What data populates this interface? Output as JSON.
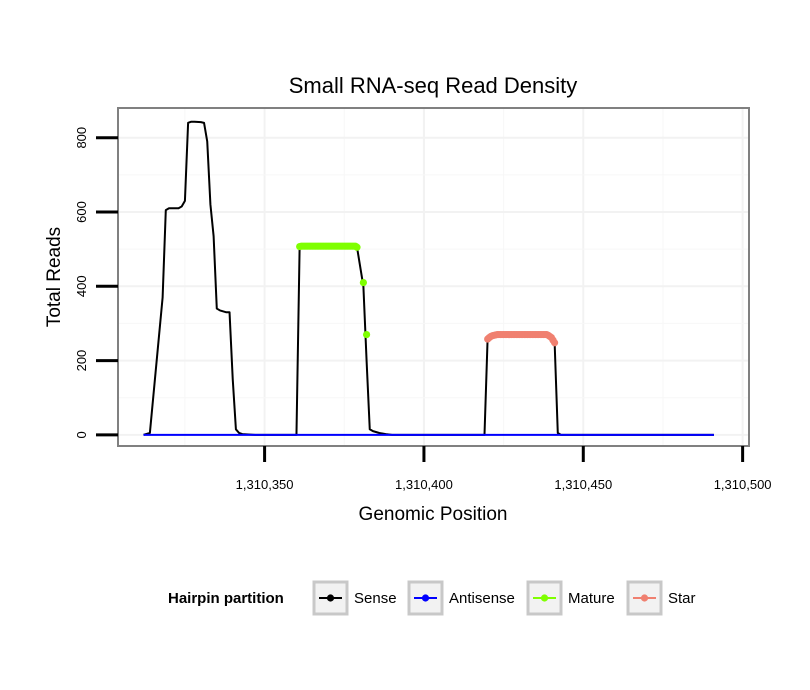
{
  "chart_data": {
    "type": "line",
    "title": "Small RNA-seq Read Density",
    "xlabel": "Genomic Position",
    "ylabel": "Total Reads",
    "xlim": [
      1310304,
      1310502
    ],
    "ylim": [
      -30,
      880
    ],
    "x_ticks": [
      1310350,
      1310400,
      1310450,
      1310500
    ],
    "x_tick_labels": [
      "1,310,350",
      "1,310,400",
      "1,310,450",
      "1,310,500"
    ],
    "y_ticks": [
      0,
      200,
      400,
      600,
      800
    ],
    "y_tick_labels": [
      "0",
      "200",
      "400",
      "600",
      "800"
    ],
    "grid": true,
    "legend_title": "Hairpin partition",
    "legend_position": "bottom",
    "series": [
      {
        "name": "Sense",
        "color": "#000000",
        "style": "line",
        "x": [
          1310312,
          1310314,
          1310318,
          1310319,
          1310320,
          1310323,
          1310324,
          1310325,
          1310326,
          1310327,
          1310328,
          1310330,
          1310331,
          1310332,
          1310333,
          1310334,
          1310335,
          1310336,
          1310338,
          1310339,
          1310340,
          1310341,
          1310342,
          1310343,
          1310345,
          1310347,
          1310355,
          1310360,
          1310361,
          1310362,
          1310379,
          1310381,
          1310382,
          1310383,
          1310384,
          1310386,
          1310388,
          1310390,
          1310395,
          1310419,
          1310420,
          1310440,
          1310441,
          1310442,
          1310443,
          1310491
        ],
        "y": [
          0,
          5,
          370,
          605,
          610,
          610,
          615,
          630,
          840,
          843,
          843,
          842,
          840,
          790,
          620,
          535,
          340,
          335,
          330,
          330,
          150,
          15,
          5,
          2,
          1,
          0,
          0,
          0,
          510,
          510,
          505,
          400,
          200,
          15,
          10,
          5,
          2,
          0,
          0,
          0,
          265,
          265,
          250,
          5,
          0,
          0
        ]
      },
      {
        "name": "Antisense",
        "color": "#0000ff",
        "style": "line",
        "x": [
          1310312,
          1310491
        ],
        "y": [
          0,
          0
        ]
      },
      {
        "name": "Mature",
        "color": "#7fff00",
        "style": "points",
        "x": [
          1310361,
          1310361.5,
          1310362,
          1310362.5,
          1310363,
          1310363.5,
          1310364,
          1310364.5,
          1310365,
          1310365.5,
          1310366,
          1310366.5,
          1310367,
          1310367.5,
          1310368,
          1310368.5,
          1310369,
          1310369.5,
          1310370,
          1310370.5,
          1310371,
          1310371.5,
          1310372,
          1310372.5,
          1310373,
          1310373.5,
          1310374,
          1310374.5,
          1310375,
          1310375.5,
          1310376,
          1310376.5,
          1310377,
          1310377.5,
          1310378,
          1310378.5,
          1310379,
          1310381,
          1310382
        ],
        "y": [
          507,
          508,
          508,
          508,
          508,
          508,
          508,
          508,
          508,
          508,
          508,
          508,
          508,
          508,
          508,
          508,
          508,
          508,
          508,
          508,
          508,
          508,
          508,
          508,
          508,
          508,
          508,
          508,
          508,
          508,
          508,
          508,
          508,
          508,
          508,
          508,
          505,
          410,
          270
        ]
      },
      {
        "name": "Star",
        "color": "#f08070",
        "style": "points",
        "x": [
          1310420,
          1310420.5,
          1310421,
          1310421.5,
          1310422,
          1310422.5,
          1310423,
          1310423.5,
          1310424,
          1310424.5,
          1310425,
          1310425.5,
          1310426,
          1310426.5,
          1310427,
          1310427.5,
          1310428,
          1310428.5,
          1310429,
          1310429.5,
          1310430,
          1310430.5,
          1310431,
          1310431.5,
          1310432,
          1310432.5,
          1310433,
          1310433.5,
          1310434,
          1310434.5,
          1310435,
          1310435.5,
          1310436,
          1310436.5,
          1310437,
          1310437.5,
          1310438,
          1310438.5,
          1310439,
          1310439.5,
          1310440,
          1310440.5,
          1310441
        ],
        "y": [
          258,
          262,
          265,
          267,
          268,
          269,
          270,
          270,
          270,
          270,
          270,
          270,
          270,
          270,
          270,
          270,
          270,
          270,
          270,
          270,
          270,
          270,
          270,
          270,
          270,
          270,
          270,
          270,
          270,
          270,
          270,
          270,
          270,
          270,
          270,
          270,
          270,
          270,
          268,
          265,
          262,
          255,
          248
        ]
      }
    ]
  }
}
